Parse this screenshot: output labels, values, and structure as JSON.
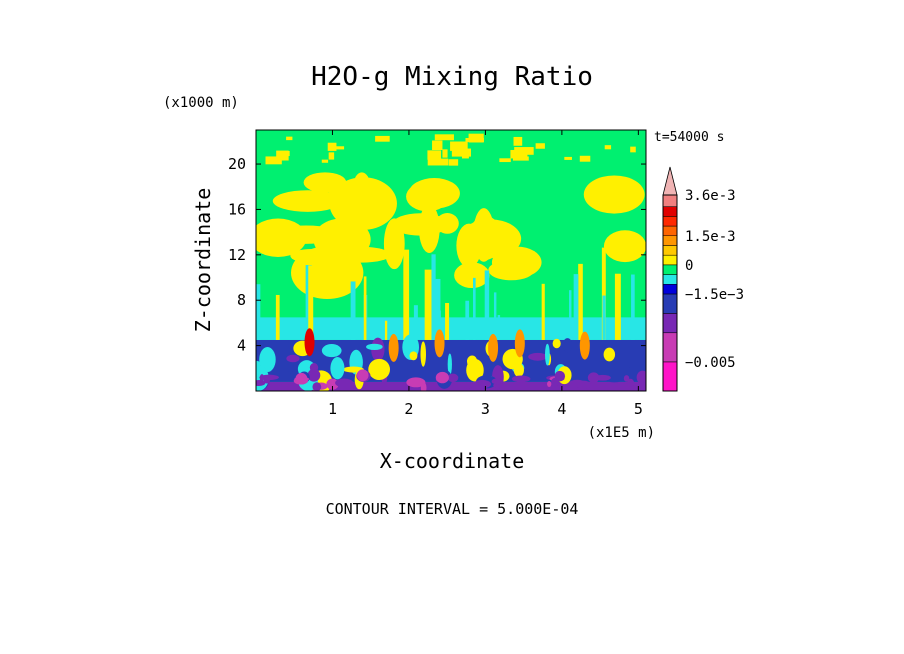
{
  "chart_data": {
    "type": "heatmap",
    "title": "H2O-g Mixing Ratio",
    "xlabel": "X-coordinate",
    "ylabel": "Z-coordinate",
    "x_units": "(x1E5 m)",
    "y_units": "(x1000 m)",
    "time_label": "t=54000 s",
    "contour_note": "CONTOUR INTERVAL = 5.000E-04",
    "xlim": [
      0,
      5.1
    ],
    "ylim": [
      0,
      23
    ],
    "x_ticks": [
      "1",
      "2",
      "3",
      "4",
      "5"
    ],
    "x_tick_values": [
      1,
      2,
      3,
      4,
      5
    ],
    "y_ticks": [
      "4",
      "8",
      "12",
      "16",
      "20"
    ],
    "y_tick_values": [
      4,
      8,
      12,
      16,
      20
    ],
    "colorbar": {
      "levels": [
        -0.0065,
        -0.005,
        -0.0035,
        -0.0025,
        -0.0015,
        -0.001,
        -0.0005,
        0,
        0.0005,
        0.001,
        0.0015,
        0.002,
        0.0025,
        0.003,
        0.0036
      ],
      "colors": [
        "#ff14c8",
        "#c83cb4",
        "#7828b4",
        "#283cb4",
        "#0000dc",
        "#28e6e6",
        "#00f070",
        "#fff000",
        "#ffc800",
        "#ff9600",
        "#ff6400",
        "#ff2800",
        "#e00000",
        "#f08080",
        "#f0b4b4"
      ],
      "labels": [
        {
          "text": "3.6e-3",
          "value": 0.0036
        },
        {
          "text": "1.5e-3",
          "value": 0.0015
        },
        {
          "text": "0",
          "value": 0
        },
        {
          "text": "−1.5e−3",
          "value": -0.0015
        },
        {
          "text": "−0.005",
          "value": -0.005
        }
      ]
    },
    "regions": [
      {
        "zrange": [
          0,
          0.8
        ],
        "value": -0.0035,
        "description": "purple-blue base"
      },
      {
        "zrange": [
          0.8,
          4.5
        ],
        "value": -0.0025,
        "description": "deep blue lower layer with convective plumes"
      },
      {
        "zrange": [
          4.5,
          6.5
        ],
        "value": -0.001,
        "description": "cyan layer"
      },
      {
        "zrange": [
          6.5,
          13
        ],
        "value": -0.0005,
        "description": "green layer"
      },
      {
        "zrange": [
          9,
          20
        ],
        "value": 0,
        "description": "yellow anvil regions"
      },
      {
        "zrange": [
          20,
          23
        ],
        "value": -0.0005,
        "description": "green top with yellow cells"
      }
    ]
  }
}
